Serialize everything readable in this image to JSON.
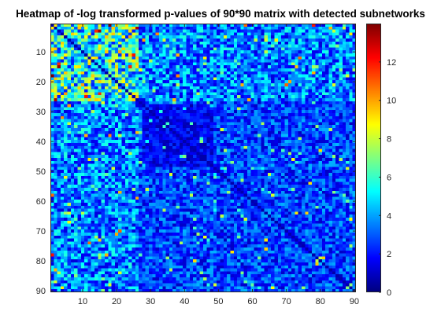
{
  "chart_data": {
    "type": "heatmap",
    "title": "Heatmap of -log transformed p-values of 90*90 matrix with detected subnetworks",
    "xlabel": "",
    "ylabel": "",
    "matrix_size": [
      90,
      90
    ],
    "xlim": [
      0.5,
      90.5
    ],
    "ylim": [
      0.5,
      90.5
    ],
    "y_direction": "reverse",
    "x_ticks": [
      10,
      20,
      30,
      40,
      50,
      60,
      70,
      80,
      90
    ],
    "y_ticks": [
      10,
      20,
      30,
      40,
      50,
      60,
      70,
      80,
      90
    ],
    "colorbar": {
      "colormap": "jet",
      "clim": [
        0,
        14
      ],
      "ticks": [
        0,
        2,
        4,
        6,
        8,
        10,
        12
      ]
    },
    "approximate_structure": {
      "background_mean": 2.6,
      "high_block_rows": [
        1,
        26
      ],
      "high_block_cols": [
        1,
        26
      ],
      "high_block_mean": 5.8,
      "peak_cells": [
        {
          "row": 70,
          "col": 21,
          "value": 11
        },
        {
          "row": 71,
          "col": 20,
          "value": 10
        },
        {
          "row": 10,
          "col": 21,
          "value": 10
        },
        {
          "row": 17,
          "col": 5,
          "value": 9.5
        },
        {
          "row": 46,
          "col": 72,
          "value": 8.5
        },
        {
          "row": 78,
          "col": 1,
          "value": 12
        },
        {
          "row": 2,
          "col": 1,
          "value": 9
        }
      ]
    }
  }
}
